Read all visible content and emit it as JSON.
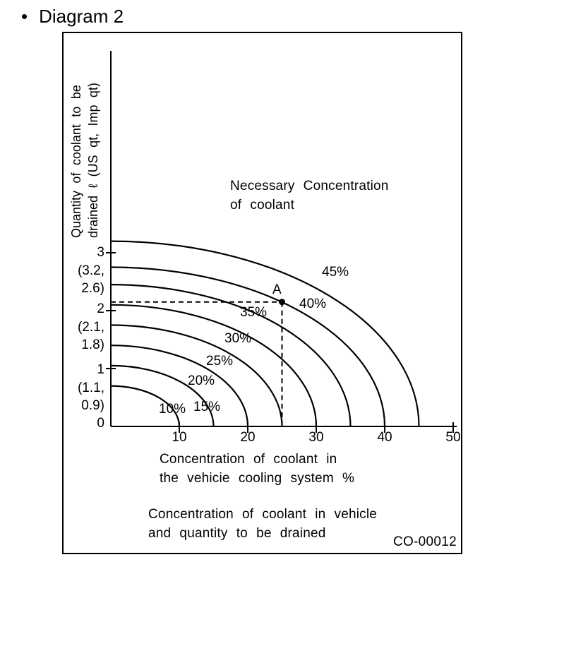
{
  "heading": {
    "bullet": "•",
    "text": "Diagram 2"
  },
  "figure": {
    "code": "CO-00012",
    "y_axis_label_line1": "Quantity of coolant to be",
    "y_axis_label_line2": "drained ℓ (US qt, Imp qt)",
    "annotation_line1": "Necessary Concentration",
    "annotation_line2": "of coolant",
    "point_label": "A",
    "x_axis_caption_line1": "Concentration of coolant in",
    "x_axis_caption_line2": "the vehicie cooling system %",
    "caption_line1": "Concentration of coolant in vehicle",
    "caption_line2": "and quantity to be drained"
  },
  "chart_data": {
    "type": "line",
    "title": "Concentration of coolant in vehicle and quantity to be drained",
    "xlabel": "Concentration of coolant in the vehicie cooling system %",
    "ylabel": "Quantity of coolant to be drained ℓ (US qt, Imp qt)",
    "annotation": "Necessary Concentration of coolant",
    "xlim": [
      0,
      50
    ],
    "ylim": [
      0,
      3.8
    ],
    "grid": false,
    "x_ticks": [
      10,
      20,
      30,
      40,
      50
    ],
    "x_tick_labels": [
      "10",
      "20",
      "30",
      "40",
      "50"
    ],
    "y_tick_values": [
      1,
      2,
      3
    ],
    "y_tick_labels": [
      {
        "liters": "3",
        "us_qt": "(3.2,",
        "imp_qt": "2.6)"
      },
      {
        "liters": "2",
        "us_qt": "(2.1,",
        "imp_qt": "1.8)"
      },
      {
        "liters": "1",
        "us_qt": "(1.1,",
        "imp_qt": "0.9)"
      },
      {
        "liters": "0",
        "us_qt": "",
        "imp_qt": ""
      }
    ],
    "series": [
      {
        "label": "10%",
        "x_intercept": 10,
        "y_at_x0": 0.7
      },
      {
        "label": "15%",
        "x_intercept": 15,
        "y_at_x0": 1.05
      },
      {
        "label": "20%",
        "x_intercept": 20,
        "y_at_x0": 1.4
      },
      {
        "label": "25%",
        "x_intercept": 25,
        "y_at_x0": 1.75
      },
      {
        "label": "30%",
        "x_intercept": 30,
        "y_at_x0": 2.1
      },
      {
        "label": "35%",
        "x_intercept": 35,
        "y_at_x0": 2.45
      },
      {
        "label": "40%",
        "x_intercept": 40,
        "y_at_x0": 2.75
      },
      {
        "label": "45%",
        "x_intercept": 45,
        "y_at_x0": 3.2
      }
    ],
    "curve_shape": "quarter-ellipse from (0, y_at_x0) down to (x_intercept, 0)",
    "marked_point": {
      "label": "A",
      "x": 25,
      "y": 2.15
    },
    "colors": {
      "ink": "#000000",
      "background": "#ffffff"
    }
  }
}
